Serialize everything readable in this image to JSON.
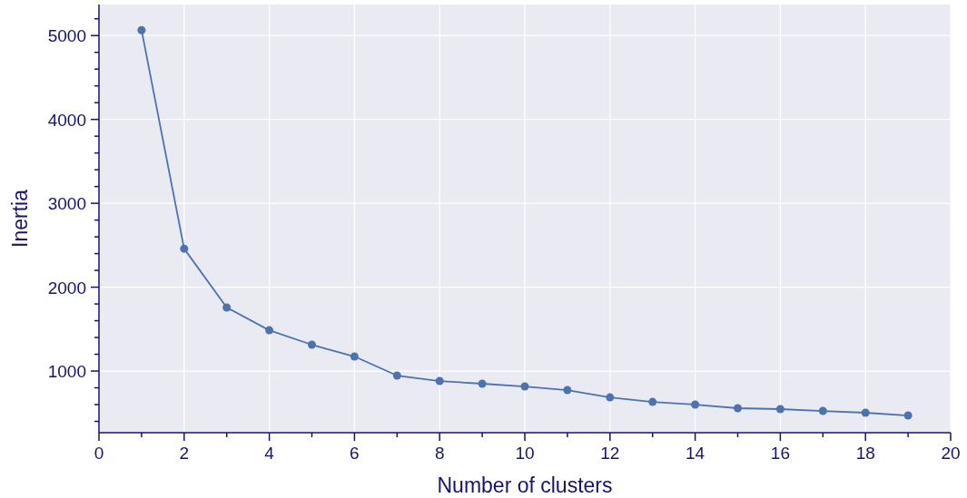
{
  "chart_data": {
    "type": "line",
    "xlabel": "Number of clusters",
    "ylabel": "Inertia",
    "x": [
      1,
      2,
      3,
      4,
      5,
      6,
      7,
      8,
      9,
      10,
      11,
      12,
      13,
      14,
      15,
      16,
      17,
      18,
      19
    ],
    "series": [
      {
        "color": "#4c72b0",
        "values": [
          5065,
          2459,
          1757,
          1486,
          1314,
          1173,
          946,
          881,
          849,
          816,
          773,
          686,
          632,
          600,
          557,
          546,
          524,
          503,
          470
        ]
      }
    ],
    "xlim": [
      0,
      20
    ],
    "xticks": [
      0,
      {
        "value": 1,
        "label": null
      },
      2,
      {
        "value": 3,
        "label": null
      },
      4,
      {
        "value": 5,
        "label": null
      },
      6,
      {
        "value": 7,
        "label": null
      },
      8,
      {
        "value": 9,
        "label": null
      },
      10,
      {
        "value": 11,
        "label": null
      },
      12,
      {
        "value": 13,
        "label": null
      },
      14,
      {
        "value": 15,
        "label": null
      },
      16,
      {
        "value": 17,
        "label": null
      },
      18,
      {
        "value": 19,
        "label": null
      },
      20
    ],
    "ylim": [
      265,
      5370
    ],
    "yticks": [
      {
        "value": 400,
        "label": null
      },
      {
        "value": 600,
        "label": null
      },
      {
        "value": 800,
        "label": null
      },
      1000,
      {
        "value": 1200,
        "label": null
      },
      {
        "value": 1400,
        "label": null
      },
      {
        "value": 1600,
        "label": null
      },
      {
        "value": 1800,
        "label": null
      },
      2000,
      {
        "value": 2200,
        "label": null
      },
      {
        "value": 2400,
        "label": null
      },
      {
        "value": 2600,
        "label": null
      },
      {
        "value": 2800,
        "label": null
      },
      3000,
      {
        "value": 3200,
        "label": null
      },
      {
        "value": 3400,
        "label": null
      },
      {
        "value": 3600,
        "label": null
      },
      {
        "value": 3800,
        "label": null
      },
      4000,
      {
        "value": 4200,
        "label": null
      },
      {
        "value": 4400,
        "label": null
      },
      {
        "value": 4600,
        "label": null
      },
      {
        "value": 4800,
        "label": null
      },
      5000,
      {
        "value": 5200,
        "label": null
      }
    ],
    "grid": true,
    "marker": "circle",
    "line_style": "solid"
  }
}
